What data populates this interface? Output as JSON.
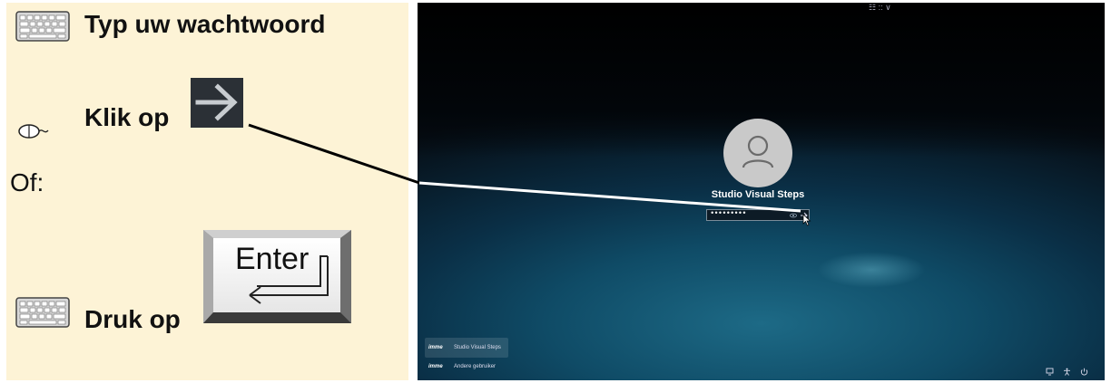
{
  "instructions": {
    "step1": "Typ uw wachtwoord",
    "step2": "Klik op",
    "or": "Of:",
    "step3": "Druk op",
    "enter_key_label": "Enter"
  },
  "login_screen": {
    "keyboard_layout_indicator": "☷ :: ∨",
    "user_name": "Studio Visual Steps",
    "password_value": "•••••••••",
    "user_tiles": [
      {
        "logo": "imme",
        "name": "Studio Visual Steps"
      },
      {
        "logo": "imme",
        "name": "Andere gebruiker"
      }
    ],
    "system_icons": [
      "network-icon",
      "accessibility-icon",
      "power-icon"
    ]
  }
}
